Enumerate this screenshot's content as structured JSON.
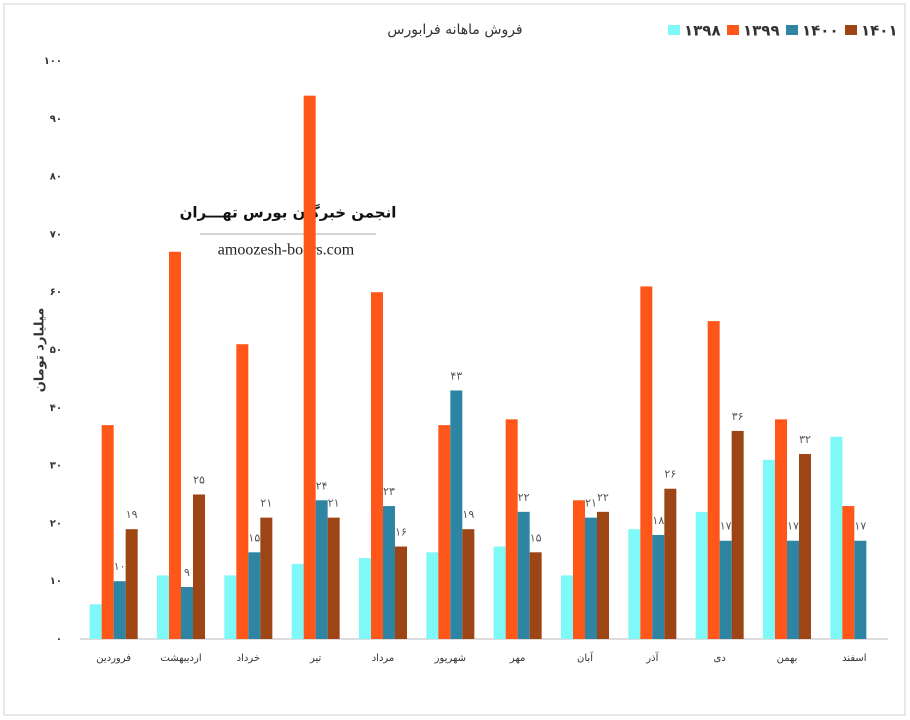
{
  "chart_data": {
    "type": "bar",
    "title": "فروش ماهانه فرابورس",
    "y_label": "میلیارد تومان",
    "annotations": [
      "انجمن خبرگان بورس تهـــران",
      "amoozesh-boors.com"
    ],
    "categories": [
      "فروردین",
      "اردیبهشت",
      "خرداد",
      "تیر",
      "مرداد",
      "شهریور",
      "مهر",
      "آبان",
      "آذر",
      "دی",
      "بهمن",
      "اسفند"
    ],
    "series": [
      {
        "name": "۱۳۹۸",
        "color": "#7ff8f8",
        "values": [
          6,
          11,
          11,
          13,
          14,
          15,
          16,
          11,
          19,
          22,
          31,
          35
        ]
      },
      {
        "name": "۱۳۹۹",
        "color": "#ff5619",
        "values": [
          37,
          67,
          51,
          94,
          60,
          37,
          38,
          24,
          61,
          55,
          38,
          23
        ]
      },
      {
        "name": "۱۴۰۰",
        "color": "#2e85a3",
        "values": [
          10,
          9,
          15,
          24,
          23,
          43,
          22,
          21,
          18,
          17,
          17,
          17
        ],
        "value_labels": [
          "۱۰",
          "۹",
          "۱۵",
          "۲۴",
          "۲۳",
          "۴۳",
          "۲۲",
          "۲۱",
          "۱۸",
          "۱۷",
          "۱۷",
          "۱۷"
        ]
      },
      {
        "name": "۱۴۰۱",
        "color": "#9e4515",
        "values": [
          19,
          25,
          21,
          21,
          16,
          19,
          15,
          22,
          26,
          36,
          32,
          null
        ],
        "value_labels": [
          "۱۹",
          "۲۵",
          "۲۱",
          "۲۱",
          "۱۶",
          "۱۹",
          "۱۵",
          "۲۲",
          "۲۶",
          "۳۶",
          "۳۲",
          null
        ]
      }
    ],
    "ylim": [
      0,
      100
    ],
    "yticks": [
      {
        "value": 0,
        "label": "۰"
      },
      {
        "value": 10,
        "label": "۱۰"
      },
      {
        "value": 20,
        "label": "۲۰"
      },
      {
        "value": 30,
        "label": "۳۰"
      },
      {
        "value": 40,
        "label": "۴۰"
      },
      {
        "value": 50,
        "label": "۵۰"
      },
      {
        "value": 60,
        "label": "۶۰"
      },
      {
        "value": 70,
        "label": "۷۰"
      },
      {
        "value": 80,
        "label": "۸۰"
      },
      {
        "value": 90,
        "label": "۹۰"
      },
      {
        "value": 100,
        "label": "۱۰۰"
      }
    ],
    "grid": false,
    "legend": "top-right"
  }
}
